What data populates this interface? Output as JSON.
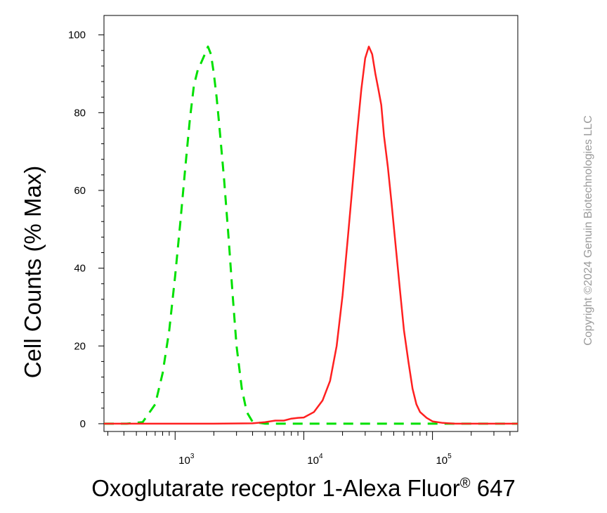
{
  "chart_data": {
    "type": "line",
    "title": "",
    "xlabel": "Oxoglutarate receptor 1-Alexa Fluor",
    "xlabel_registered": "®",
    "xlabel_suffix": " 647",
    "ylabel": "Cell Counts (% Max)",
    "x_scale": "log",
    "xlim": [
      280,
      460000
    ],
    "ylim": [
      -2,
      105
    ],
    "yticks": [
      0,
      20,
      40,
      60,
      80,
      100
    ],
    "ytick_labels": [
      "0",
      "20",
      "40",
      "60",
      "80",
      "100"
    ],
    "xticks": [
      {
        "value": 1000,
        "base": "10",
        "exp": "3"
      },
      {
        "value": 10000,
        "base": "10",
        "exp": "4"
      },
      {
        "value": 100000,
        "base": "10",
        "exp": "5"
      }
    ],
    "grid": false,
    "series": [
      {
        "color": "#00e000",
        "style": "dashed",
        "x": [
          280,
          420,
          560,
          700,
          800,
          900,
          1000,
          1100,
          1200,
          1300,
          1400,
          1500,
          1600,
          1700,
          1800,
          1900,
          2000,
          2100,
          2200,
          2400,
          2600,
          2800,
          3000,
          3300,
          3600,
          4000,
          5000,
          10000,
          30000,
          100000,
          460000
        ],
        "y": [
          0,
          0,
          0.4,
          5,
          13,
          24,
          38,
          52,
          66,
          78,
          87,
          91,
          93,
          95,
          97,
          95,
          90,
          84,
          77,
          63,
          48,
          33,
          20,
          9,
          3,
          0.5,
          0,
          0,
          0,
          0,
          0
        ]
      },
      {
        "color": "#ff2020",
        "style": "solid",
        "x": [
          280,
          2000,
          4000,
          5000,
          6000,
          7000,
          8000,
          9000,
          10000,
          12000,
          14000,
          16000,
          18000,
          20000,
          22000,
          24000,
          26000,
          28000,
          30000,
          32000,
          34000,
          36000,
          38000,
          40000,
          42000,
          45000,
          48000,
          52000,
          56000,
          60000,
          65000,
          70000,
          75000,
          80000,
          90000,
          100000,
          120000,
          150000,
          200000,
          300000,
          460000
        ],
        "y": [
          0,
          0,
          0.1,
          0.4,
          0.8,
          0.8,
          1.3,
          1.5,
          1.6,
          3,
          6,
          11,
          20,
          33,
          48,
          62,
          75,
          86,
          94,
          97,
          95,
          90,
          86,
          82,
          74,
          66,
          57,
          45,
          34,
          24,
          16,
          9,
          5,
          3,
          1.5,
          0.6,
          0.2,
          0,
          0,
          0,
          0
        ]
      }
    ]
  },
  "copyright": "Copyright ©2024 Genuin Biotechnologies LLC"
}
